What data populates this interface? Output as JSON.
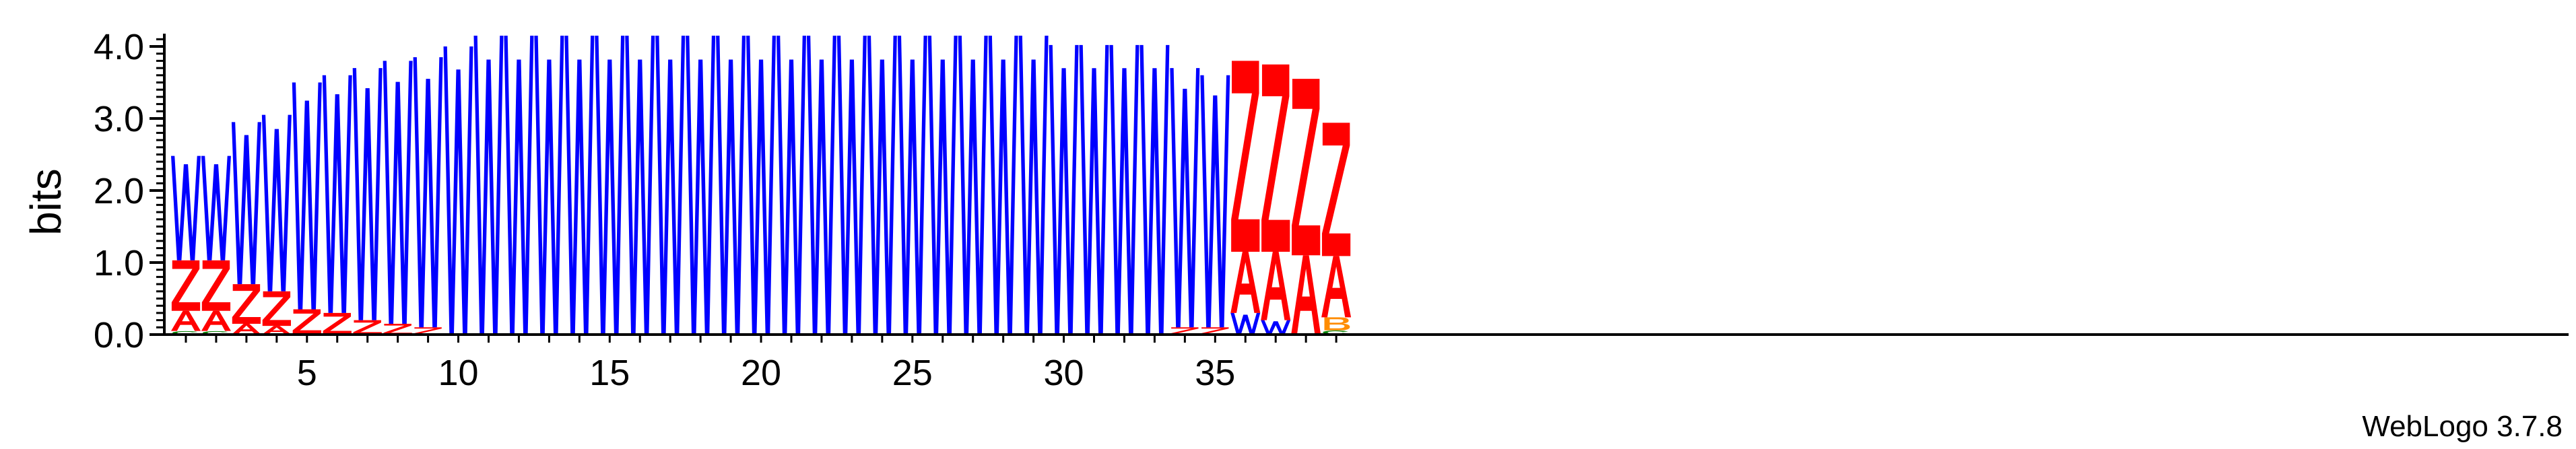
{
  "chart_data": {
    "type": "sequence-logo",
    "ylabel": "bits",
    "ylim": [
      0,
      4.2
    ],
    "y_ticks": [
      "0.0",
      "1.0",
      "2.0",
      "3.0",
      "4.0"
    ],
    "x_ticks": [
      "5",
      "10",
      "15",
      "20",
      "25",
      "30",
      "35"
    ],
    "num_positions": 39,
    "colors": {
      "W": "#0000ff",
      "Z": "#ff0000",
      "A": "#ff0000",
      "C": "#008000",
      "B": "#ff8c00",
      "other": "#ff8c00"
    },
    "positions": [
      {
        "pos": 1,
        "stack": [
          [
            "C",
            0.05
          ],
          [
            "A",
            0.28
          ],
          [
            "Z",
            0.7
          ],
          [
            "W",
            1.45
          ]
        ]
      },
      {
        "pos": 2,
        "stack": [
          [
            "C",
            0.05
          ],
          [
            "A",
            0.28
          ],
          [
            "Z",
            0.7
          ],
          [
            "W",
            1.45
          ]
        ]
      },
      {
        "pos": 3,
        "stack": [
          [
            "A",
            0.15
          ],
          [
            "Z",
            0.55
          ],
          [
            "W",
            2.25
          ]
        ]
      },
      {
        "pos": 4,
        "stack": [
          [
            "A",
            0.12
          ],
          [
            "Z",
            0.48
          ],
          [
            "W",
            2.45
          ]
        ]
      },
      {
        "pos": 5,
        "stack": [
          [
            "Z",
            0.35
          ],
          [
            "W",
            3.15
          ]
        ]
      },
      {
        "pos": 6,
        "stack": [
          [
            "Z",
            0.3
          ],
          [
            "W",
            3.3
          ]
        ]
      },
      {
        "pos": 7,
        "stack": [
          [
            "Z",
            0.2
          ],
          [
            "W",
            3.5
          ]
        ]
      },
      {
        "pos": 8,
        "stack": [
          [
            "Z",
            0.15
          ],
          [
            "W",
            3.65
          ]
        ]
      },
      {
        "pos": 9,
        "stack": [
          [
            "Z",
            0.1
          ],
          [
            "W",
            3.75
          ]
        ]
      },
      {
        "pos": 10,
        "stack": [
          [
            "W",
            4.0
          ]
        ]
      },
      {
        "pos": 11,
        "stack": [
          [
            "W",
            4.15
          ]
        ]
      },
      {
        "pos": 12,
        "stack": [
          [
            "W",
            4.15
          ]
        ]
      },
      {
        "pos": 13,
        "stack": [
          [
            "W",
            4.15
          ]
        ]
      },
      {
        "pos": 14,
        "stack": [
          [
            "W",
            4.15
          ]
        ]
      },
      {
        "pos": 15,
        "stack": [
          [
            "W",
            4.15
          ]
        ]
      },
      {
        "pos": 16,
        "stack": [
          [
            "W",
            4.15
          ]
        ]
      },
      {
        "pos": 17,
        "stack": [
          [
            "W",
            4.15
          ]
        ]
      },
      {
        "pos": 18,
        "stack": [
          [
            "W",
            4.15
          ]
        ]
      },
      {
        "pos": 19,
        "stack": [
          [
            "W",
            4.15
          ]
        ]
      },
      {
        "pos": 20,
        "stack": [
          [
            "W",
            4.15
          ]
        ]
      },
      {
        "pos": 21,
        "stack": [
          [
            "W",
            4.15
          ]
        ]
      },
      {
        "pos": 22,
        "stack": [
          [
            "W",
            4.15
          ]
        ]
      },
      {
        "pos": 23,
        "stack": [
          [
            "W",
            4.15
          ]
        ]
      },
      {
        "pos": 24,
        "stack": [
          [
            "W",
            4.15
          ]
        ]
      },
      {
        "pos": 25,
        "stack": [
          [
            "W",
            4.15
          ]
        ]
      },
      {
        "pos": 26,
        "stack": [
          [
            "W",
            4.15
          ]
        ]
      },
      {
        "pos": 27,
        "stack": [
          [
            "W",
            4.15
          ]
        ]
      },
      {
        "pos": 28,
        "stack": [
          [
            "W",
            4.15
          ]
        ]
      },
      {
        "pos": 29,
        "stack": [
          [
            "W",
            4.15
          ]
        ]
      },
      {
        "pos": 30,
        "stack": [
          [
            "W",
            4.02
          ]
        ]
      },
      {
        "pos": 31,
        "stack": [
          [
            "W",
            4.02
          ]
        ]
      },
      {
        "pos": 32,
        "stack": [
          [
            "W",
            4.02
          ]
        ]
      },
      {
        "pos": 33,
        "stack": [
          [
            "W",
            4.02
          ]
        ]
      },
      {
        "pos": 34,
        "stack": [
          [
            "Z",
            0.1
          ],
          [
            "W",
            3.6
          ]
        ]
      },
      {
        "pos": 35,
        "stack": [
          [
            "Z",
            0.1
          ],
          [
            "W",
            3.5
          ]
        ]
      },
      {
        "pos": 36,
        "stack": [
          [
            "W",
            0.3
          ],
          [
            "A",
            0.85
          ],
          [
            "Z",
            2.65
          ]
        ]
      },
      {
        "pos": 37,
        "stack": [
          [
            "W",
            0.2
          ],
          [
            "A",
            0.95
          ],
          [
            "Z",
            2.6
          ]
        ]
      },
      {
        "pos": 38,
        "stack": [
          [
            "A",
            1.1
          ],
          [
            "Z",
            2.45
          ]
        ]
      },
      {
        "pos": 39,
        "stack": [
          [
            "C",
            0.06
          ],
          [
            "B",
            0.18
          ],
          [
            "A",
            0.85
          ],
          [
            "Z",
            1.85
          ]
        ]
      }
    ]
  },
  "footer": {
    "version_label": "WebLogo 3.7.8"
  }
}
